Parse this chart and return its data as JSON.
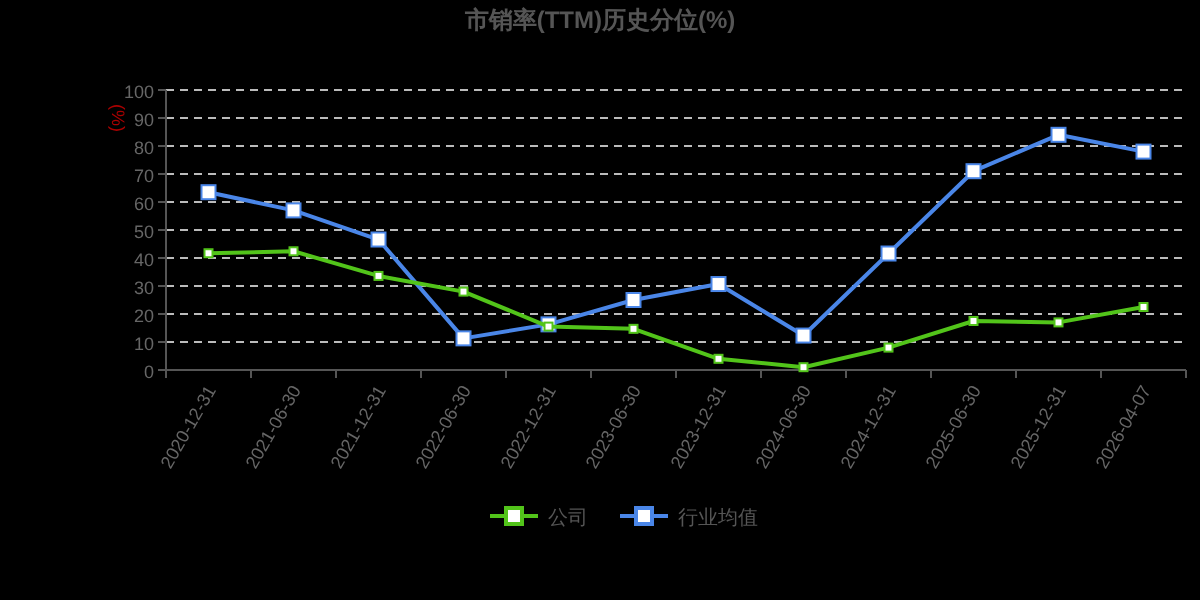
{
  "chart_data": {
    "type": "line",
    "title": "市销率(TTM)历史分位(%)",
    "ylabel": "(%)",
    "categories": [
      "2020-12-31",
      "2021-06-30",
      "2021-12-31",
      "2022-06-30",
      "2022-12-31",
      "2023-06-30",
      "2023-12-31",
      "2024-06-30",
      "2024-12-31",
      "2025-06-30",
      "2025-12-31",
      "2026-04-07"
    ],
    "series": [
      {
        "name": "公司",
        "color": "#52c41a",
        "values": [
          41.7,
          42.4,
          33.6,
          28,
          15.5,
          14.7,
          4,
          1,
          8,
          17.5,
          17,
          22.5
        ]
      },
      {
        "name": "行业均值",
        "color": "#4a86e8",
        "values": [
          63.5,
          57,
          46.6,
          11.3,
          16.3,
          25,
          30.7,
          12.3,
          41.6,
          71,
          84,
          78
        ]
      }
    ],
    "ylim": [
      0,
      100
    ],
    "yticks": [
      0,
      10,
      20,
      30,
      40,
      50,
      60,
      70,
      80,
      90,
      100
    ],
    "grid": "y",
    "legend": "bottom",
    "marker": "square"
  }
}
